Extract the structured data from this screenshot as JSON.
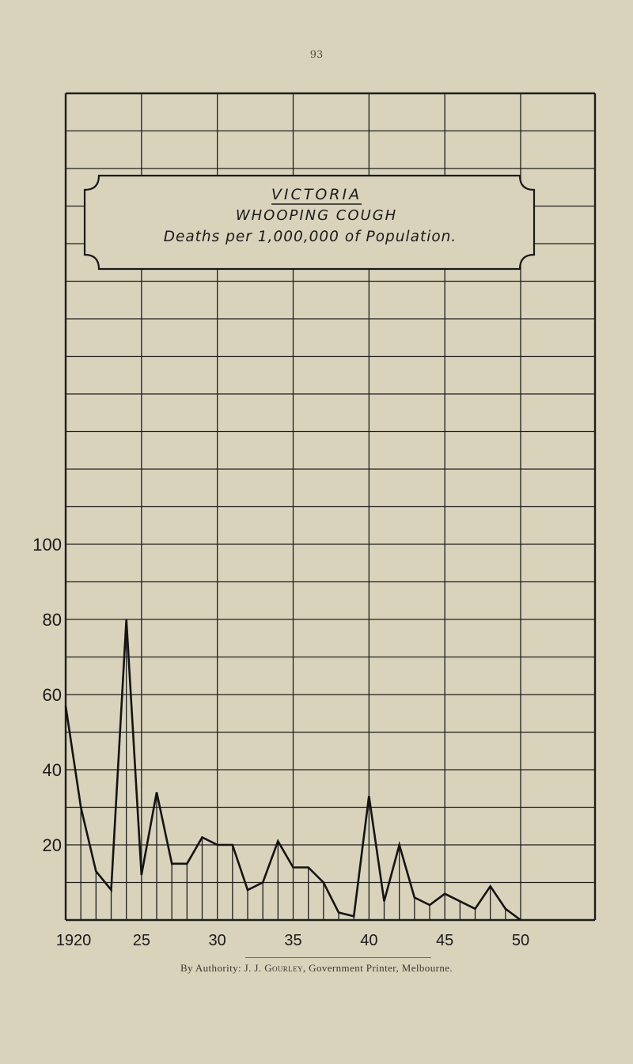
{
  "page": {
    "number": "93",
    "footer": {
      "prefix": "By Authority: J. J. ",
      "printer_name": "Gourley",
      "suffix": ", Government Printer, Melbourne."
    },
    "colors": {
      "paper": "#d9d3bc",
      "ink": "#1a1a1a"
    }
  },
  "chart_data": {
    "type": "line",
    "title": "VICTORIA",
    "subtitle": "WHOOPING COUGH",
    "caption": "Deaths per 1,000,000 of Population.",
    "xlabel": "",
    "ylabel": "",
    "xlim": [
      1920,
      1950
    ],
    "ylim": [
      0,
      220
    ],
    "grid": true,
    "x_ticks": [
      1920,
      1925,
      1930,
      1935,
      1940,
      1945,
      1950
    ],
    "x_tick_labels": [
      "1920",
      "25",
      "30",
      "35",
      "40",
      "45",
      "50"
    ],
    "y_ticks": [
      20,
      40,
      60,
      80,
      100
    ],
    "y_tick_labels": [
      "20",
      "40",
      "60",
      "80",
      "100"
    ],
    "series": [
      {
        "name": "Whooping cough deaths per 1,000,000",
        "x": [
          1920,
          1921,
          1922,
          1923,
          1924,
          1925,
          1926,
          1927,
          1928,
          1929,
          1930,
          1931,
          1932,
          1933,
          1934,
          1935,
          1936,
          1937,
          1938,
          1939,
          1940,
          1941,
          1942,
          1943,
          1944,
          1945,
          1946,
          1947,
          1948,
          1949,
          1950
        ],
        "values": [
          57,
          30,
          13,
          8,
          80,
          12,
          34,
          15,
          15,
          22,
          20,
          20,
          8,
          10,
          21,
          14,
          14,
          10,
          2,
          1,
          33,
          5,
          20,
          6,
          4,
          7,
          5,
          3,
          9,
          3,
          0
        ]
      }
    ]
  }
}
